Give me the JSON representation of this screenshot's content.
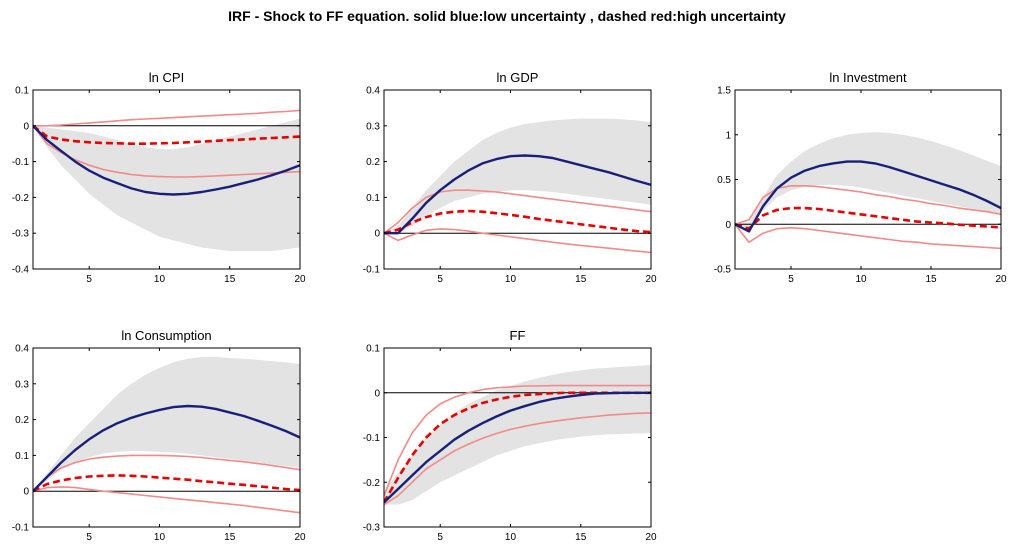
{
  "figure": {
    "title": "IRF - Shock to FF equation. solid blue:low uncertainty , dashed red:high uncertainty"
  },
  "colors": {
    "band_fill": "#e3e3e3",
    "low_uncertainty": "#1a1f7a",
    "high_uncertainty_median": "#e60000",
    "high_uncertainty_bands": "#f28a8a",
    "zero_line": "#000000",
    "axis": "#000000"
  },
  "chart_data": [
    {
      "type": "line",
      "title": "ln CPI",
      "x": [
        1,
        2,
        3,
        4,
        5,
        6,
        7,
        8,
        9,
        10,
        11,
        12,
        13,
        14,
        15,
        16,
        17,
        18,
        19,
        20
      ],
      "xlim": [
        1,
        20
      ],
      "ylim": [
        -0.4,
        0.1
      ],
      "xticks": [
        5,
        10,
        15,
        20
      ],
      "yticks": [
        -0.4,
        -0.3,
        -0.2,
        -0.1,
        0,
        0.1
      ],
      "ytick_labels": [
        "-0.4",
        "-0.3",
        "-0.2",
        "-0.1",
        "0",
        "0.1"
      ],
      "band_upper": [
        0,
        -0.005,
        -0.01,
        -0.015,
        -0.02,
        -0.03,
        -0.04,
        -0.05,
        -0.06,
        -0.065,
        -0.065,
        -0.06,
        -0.05,
        -0.04,
        -0.03,
        -0.02,
        -0.01,
        0.0,
        0.01,
        0.02
      ],
      "band_lower": [
        0,
        -0.06,
        -0.11,
        -0.15,
        -0.19,
        -0.22,
        -0.25,
        -0.27,
        -0.29,
        -0.31,
        -0.32,
        -0.33,
        -0.34,
        -0.345,
        -0.35,
        -0.35,
        -0.35,
        -0.35,
        -0.345,
        -0.34
      ],
      "series": [
        {
          "role": "low",
          "values": [
            0,
            -0.04,
            -0.07,
            -0.1,
            -0.125,
            -0.145,
            -0.16,
            -0.175,
            -0.185,
            -0.19,
            -0.192,
            -0.19,
            -0.185,
            -0.178,
            -0.17,
            -0.16,
            -0.15,
            -0.138,
            -0.125,
            -0.11
          ]
        },
        {
          "role": "high_median",
          "values": [
            0,
            -0.03,
            -0.038,
            -0.043,
            -0.046,
            -0.048,
            -0.049,
            -0.05,
            -0.05,
            -0.049,
            -0.048,
            -0.046,
            -0.044,
            -0.042,
            -0.04,
            -0.038,
            -0.036,
            -0.034,
            -0.032,
            -0.03
          ]
        },
        {
          "role": "high_upper",
          "values": [
            0,
            0,
            0.002,
            0.005,
            0.008,
            0.011,
            0.014,
            0.017,
            0.019,
            0.021,
            0.023,
            0.025,
            0.027,
            0.029,
            0.031,
            0.033,
            0.035,
            0.038,
            0.04,
            0.043
          ]
        },
        {
          "role": "high_lower",
          "values": [
            0,
            -0.05,
            -0.075,
            -0.095,
            -0.11,
            -0.122,
            -0.13,
            -0.136,
            -0.14,
            -0.142,
            -0.143,
            -0.143,
            -0.142,
            -0.14,
            -0.138,
            -0.136,
            -0.134,
            -0.132,
            -0.13,
            -0.128
          ]
        }
      ]
    },
    {
      "type": "line",
      "title": "ln GDP",
      "x": [
        1,
        2,
        3,
        4,
        5,
        6,
        7,
        8,
        9,
        10,
        11,
        12,
        13,
        14,
        15,
        16,
        17,
        18,
        19,
        20
      ],
      "xlim": [
        1,
        20
      ],
      "ylim": [
        -0.1,
        0.4
      ],
      "xticks": [
        5,
        10,
        15,
        20
      ],
      "yticks": [
        -0.1,
        0,
        0.1,
        0.2,
        0.3,
        0.4
      ],
      "ytick_labels": [
        "-0.1",
        "0",
        "0.1",
        "0.2",
        "0.3",
        "0.4"
      ],
      "band_upper": [
        0,
        0.02,
        0.07,
        0.12,
        0.16,
        0.2,
        0.23,
        0.26,
        0.28,
        0.295,
        0.305,
        0.31,
        0.315,
        0.318,
        0.32,
        0.32,
        0.32,
        0.318,
        0.315,
        0.31
      ],
      "band_lower": [
        0,
        0.0,
        0.02,
        0.05,
        0.07,
        0.09,
        0.1,
        0.11,
        0.115,
        0.12,
        0.12,
        0.118,
        0.115,
        0.11,
        0.105,
        0.1,
        0.095,
        0.09,
        0.085,
        0.08
      ],
      "series": [
        {
          "role": "low",
          "values": [
            0,
            0.0,
            0.04,
            0.085,
            0.12,
            0.15,
            0.175,
            0.195,
            0.207,
            0.215,
            0.217,
            0.215,
            0.21,
            0.2,
            0.19,
            0.18,
            0.17,
            0.158,
            0.146,
            0.135
          ]
        },
        {
          "role": "high_median",
          "values": [
            0,
            0.01,
            0.03,
            0.045,
            0.055,
            0.06,
            0.062,
            0.06,
            0.056,
            0.051,
            0.046,
            0.04,
            0.035,
            0.03,
            0.025,
            0.02,
            0.015,
            0.01,
            0.006,
            0.003
          ]
        },
        {
          "role": "high_upper",
          "values": [
            0,
            0.03,
            0.07,
            0.1,
            0.115,
            0.12,
            0.12,
            0.118,
            0.115,
            0.11,
            0.105,
            0.1,
            0.095,
            0.09,
            0.085,
            0.08,
            0.075,
            0.07,
            0.065,
            0.06
          ]
        },
        {
          "role": "high_lower",
          "values": [
            0,
            -0.02,
            -0.005,
            0.008,
            0.012,
            0.01,
            0.006,
            0.0,
            -0.005,
            -0.01,
            -0.015,
            -0.02,
            -0.025,
            -0.03,
            -0.034,
            -0.038,
            -0.042,
            -0.046,
            -0.05,
            -0.054
          ]
        }
      ]
    },
    {
      "type": "line",
      "title": "ln Investment",
      "x": [
        1,
        2,
        3,
        4,
        5,
        6,
        7,
        8,
        9,
        10,
        11,
        12,
        13,
        14,
        15,
        16,
        17,
        18,
        19,
        20
      ],
      "xlim": [
        1,
        20
      ],
      "ylim": [
        -0.5,
        1.5
      ],
      "xticks": [
        5,
        10,
        15,
        20
      ],
      "yticks": [
        -0.5,
        0,
        0.5,
        1,
        1.5
      ],
      "ytick_labels": [
        "-0.5",
        "0",
        "0.5",
        "1",
        "1.5"
      ],
      "band_upper": [
        0,
        0.02,
        0.3,
        0.55,
        0.7,
        0.82,
        0.9,
        0.96,
        1.0,
        1.02,
        1.03,
        1.02,
        1.0,
        0.97,
        0.93,
        0.88,
        0.83,
        0.77,
        0.71,
        0.65
      ],
      "band_lower": [
        0,
        -0.05,
        0.15,
        0.3,
        0.38,
        0.42,
        0.44,
        0.44,
        0.43,
        0.41,
        0.38,
        0.35,
        0.32,
        0.29,
        0.26,
        0.23,
        0.2,
        0.17,
        0.14,
        0.12
      ],
      "series": [
        {
          "role": "low",
          "values": [
            0,
            -0.08,
            0.2,
            0.4,
            0.52,
            0.6,
            0.65,
            0.68,
            0.7,
            0.7,
            0.68,
            0.64,
            0.59,
            0.54,
            0.49,
            0.44,
            0.39,
            0.33,
            0.26,
            0.18
          ]
        },
        {
          "role": "high_median",
          "values": [
            0,
            -0.05,
            0.1,
            0.16,
            0.18,
            0.18,
            0.17,
            0.15,
            0.13,
            0.11,
            0.09,
            0.07,
            0.05,
            0.03,
            0.02,
            0.01,
            -0.005,
            -0.015,
            -0.025,
            -0.035
          ]
        },
        {
          "role": "high_upper",
          "values": [
            0,
            0.05,
            0.3,
            0.4,
            0.43,
            0.43,
            0.42,
            0.4,
            0.38,
            0.36,
            0.33,
            0.31,
            0.28,
            0.26,
            0.23,
            0.21,
            0.18,
            0.16,
            0.14,
            0.11
          ]
        },
        {
          "role": "high_lower",
          "values": [
            0,
            -0.2,
            -0.1,
            -0.05,
            -0.04,
            -0.05,
            -0.07,
            -0.09,
            -0.11,
            -0.13,
            -0.15,
            -0.17,
            -0.19,
            -0.2,
            -0.22,
            -0.23,
            -0.24,
            -0.25,
            -0.26,
            -0.27
          ]
        }
      ]
    },
    {
      "type": "line",
      "title": "ln Consumption",
      "x": [
        1,
        2,
        3,
        4,
        5,
        6,
        7,
        8,
        9,
        10,
        11,
        12,
        13,
        14,
        15,
        16,
        17,
        18,
        19,
        20
      ],
      "xlim": [
        1,
        20
      ],
      "ylim": [
        -0.1,
        0.4
      ],
      "xticks": [
        5,
        10,
        15,
        20
      ],
      "yticks": [
        -0.1,
        0,
        0.1,
        0.2,
        0.3,
        0.4
      ],
      "ytick_labels": [
        "-0.1",
        "0",
        "0.1",
        "0.2",
        "0.3",
        "0.4"
      ],
      "band_upper": [
        0,
        0.05,
        0.1,
        0.15,
        0.19,
        0.23,
        0.27,
        0.3,
        0.325,
        0.345,
        0.36,
        0.37,
        0.375,
        0.375,
        0.372,
        0.37,
        0.367,
        0.363,
        0.36,
        0.355
      ],
      "band_lower": [
        0,
        0.03,
        0.06,
        0.08,
        0.095,
        0.105,
        0.11,
        0.112,
        0.112,
        0.11,
        0.108,
        0.105,
        0.1,
        0.095,
        0.09,
        0.085,
        0.08,
        0.075,
        0.07,
        0.065
      ],
      "series": [
        {
          "role": "low",
          "values": [
            0,
            0.04,
            0.08,
            0.115,
            0.145,
            0.17,
            0.19,
            0.205,
            0.217,
            0.227,
            0.235,
            0.238,
            0.236,
            0.23,
            0.22,
            0.21,
            0.197,
            0.183,
            0.168,
            0.15
          ]
        },
        {
          "role": "high_median",
          "values": [
            0,
            0.02,
            0.03,
            0.037,
            0.041,
            0.043,
            0.044,
            0.043,
            0.041,
            0.038,
            0.035,
            0.032,
            0.028,
            0.025,
            0.021,
            0.018,
            0.014,
            0.01,
            0.006,
            0.003
          ]
        },
        {
          "role": "high_upper",
          "values": [
            0,
            0.04,
            0.065,
            0.08,
            0.09,
            0.095,
            0.098,
            0.1,
            0.1,
            0.1,
            0.099,
            0.097,
            0.094,
            0.09,
            0.086,
            0.082,
            0.077,
            0.072,
            0.066,
            0.06
          ]
        },
        {
          "role": "high_lower",
          "values": [
            0,
            0.01,
            0.012,
            0.01,
            0.005,
            0.0,
            -0.004,
            -0.008,
            -0.012,
            -0.016,
            -0.02,
            -0.024,
            -0.028,
            -0.032,
            -0.036,
            -0.04,
            -0.045,
            -0.05,
            -0.055,
            -0.06
          ]
        }
      ]
    },
    {
      "type": "line",
      "title": "FF",
      "x": [
        1,
        2,
        3,
        4,
        5,
        6,
        7,
        8,
        9,
        10,
        11,
        12,
        13,
        14,
        15,
        16,
        17,
        18,
        19,
        20
      ],
      "xlim": [
        1,
        20
      ],
      "ylim": [
        -0.3,
        0.1
      ],
      "xticks": [
        5,
        10,
        15,
        20
      ],
      "yticks": [
        -0.3,
        -0.2,
        -0.1,
        0,
        0.1
      ],
      "ytick_labels": [
        "-0.3",
        "-0.2",
        "-0.1",
        "0",
        "0.1"
      ],
      "band_upper": [
        -0.22,
        -0.18,
        -0.14,
        -0.1,
        -0.07,
        -0.045,
        -0.025,
        -0.01,
        0.005,
        0.015,
        0.025,
        0.033,
        0.04,
        0.046,
        0.05,
        0.054,
        0.056,
        0.058,
        0.06,
        0.062
      ],
      "band_lower": [
        -0.25,
        -0.25,
        -0.24,
        -0.22,
        -0.2,
        -0.185,
        -0.17,
        -0.155,
        -0.14,
        -0.13,
        -0.12,
        -0.113,
        -0.107,
        -0.102,
        -0.098,
        -0.095,
        -0.093,
        -0.092,
        -0.091,
        -0.09
      ],
      "series": [
        {
          "role": "low",
          "values": [
            -0.245,
            -0.215,
            -0.185,
            -0.155,
            -0.13,
            -0.105,
            -0.085,
            -0.068,
            -0.053,
            -0.04,
            -0.03,
            -0.021,
            -0.014,
            -0.009,
            -0.005,
            -0.002,
            -0.001,
            0.0,
            0.0,
            0.0
          ]
        },
        {
          "role": "high_median",
          "values": [
            -0.245,
            -0.19,
            -0.14,
            -0.1,
            -0.07,
            -0.05,
            -0.035,
            -0.023,
            -0.015,
            -0.009,
            -0.005,
            -0.003,
            -0.001,
            0.0,
            0.0,
            0.0,
            0.0,
            0.0,
            0.0,
            0.0
          ]
        },
        {
          "role": "high_upper",
          "values": [
            -0.23,
            -0.15,
            -0.09,
            -0.05,
            -0.025,
            -0.01,
            0.0,
            0.007,
            0.011,
            0.013,
            0.015,
            0.015,
            0.016,
            0.016,
            0.016,
            0.016,
            0.016,
            0.016,
            0.016,
            0.016
          ]
        },
        {
          "role": "high_lower",
          "values": [
            -0.25,
            -0.23,
            -0.2,
            -0.17,
            -0.15,
            -0.13,
            -0.115,
            -0.102,
            -0.091,
            -0.082,
            -0.075,
            -0.069,
            -0.064,
            -0.06,
            -0.056,
            -0.053,
            -0.05,
            -0.048,
            -0.046,
            -0.045
          ]
        }
      ]
    }
  ]
}
